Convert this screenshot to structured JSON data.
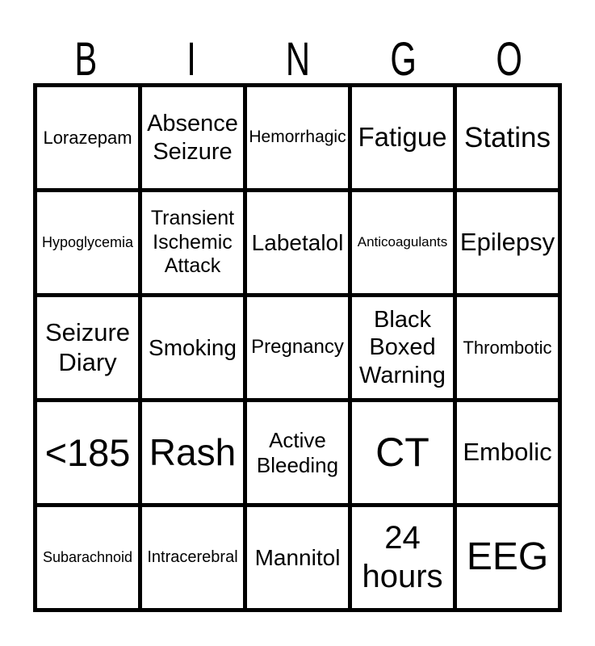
{
  "title": {
    "text": "BINGO",
    "letters": [
      "B",
      "I",
      "N",
      "G",
      "O"
    ]
  },
  "colors": {
    "grid_line": "#000000",
    "cell_background": "#ffffff",
    "text": "#000000",
    "page_background": "#ffffff"
  },
  "board": {
    "rows": 5,
    "cols": 5,
    "cells": [
      {
        "label": "Lorazepam"
      },
      {
        "label": "Absence Seizure"
      },
      {
        "label": "Hemorrhagic"
      },
      {
        "label": "Fatigue"
      },
      {
        "label": "Statins"
      },
      {
        "label": "Hypoglycemia"
      },
      {
        "label": "Transient Ischemic Attack"
      },
      {
        "label": "Labetalol"
      },
      {
        "label": "Anticoagulants"
      },
      {
        "label": "Epilepsy"
      },
      {
        "label": "Seizure Diary"
      },
      {
        "label": "Smoking"
      },
      {
        "label": "Pregnancy"
      },
      {
        "label": "Black Boxed Warning"
      },
      {
        "label": "Thrombotic"
      },
      {
        "label": "<185"
      },
      {
        "label": "Rash"
      },
      {
        "label": "Active Bleeding"
      },
      {
        "label": "CT"
      },
      {
        "label": "Embolic"
      },
      {
        "label": "Subarachnoid"
      },
      {
        "label": "Intracerebral"
      },
      {
        "label": "Mannitol"
      },
      {
        "label": "24 hours"
      },
      {
        "label": "EEG"
      }
    ]
  }
}
